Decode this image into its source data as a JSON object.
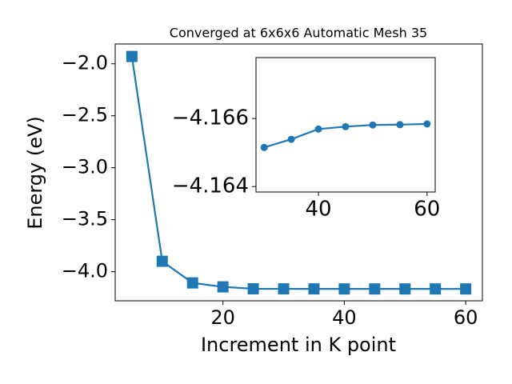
{
  "chart_data": [
    {
      "type": "line",
      "title": "Converged at 6x6x6 Automatic Mesh 35",
      "x_label": "Increment in K point",
      "y_label": "Energy (eV)",
      "x": [
        5,
        10,
        15,
        20,
        25,
        30,
        35,
        40,
        45,
        50,
        55,
        60
      ],
      "series": [
        {
          "color": "#1f77b4",
          "marker": "square",
          "values": [
            -1.93,
            -3.9,
            -4.108,
            -4.146,
            -4.1645,
            -4.16515,
            -4.16539,
            -4.16569,
            -4.16576,
            -4.16581,
            -4.16582,
            -4.16584
          ]
        }
      ],
      "xlim": [
        2.25,
        62.75
      ],
      "ylim": [
        -4.28,
        -1.81
      ],
      "xticks": [
        20,
        40,
        60
      ],
      "yticks": [
        {
          "value": -4.0,
          "label": "−4.0"
        },
        {
          "value": -3.5,
          "label": "−3.5"
        },
        {
          "value": -3.0,
          "label": "−3.0"
        },
        {
          "value": -2.5,
          "label": "−2.5"
        },
        {
          "value": -2.0,
          "label": "−2.0"
        }
      ]
    },
    {
      "type": "line",
      "x": [
        30,
        35,
        40,
        45,
        50,
        55,
        60
      ],
      "series": [
        {
          "color": "#1f77b4",
          "marker": "circle",
          "values": [
            -4.16515,
            -4.16539,
            -4.16569,
            -4.16576,
            -4.16581,
            -4.16582,
            -4.16584
          ]
        }
      ],
      "xlim": [
        28.5,
        61.5
      ],
      "ylim": [
        -4.16384,
        -4.16779
      ],
      "xticks": [
        40,
        60
      ],
      "yticks": [
        {
          "value": -4.166,
          "label": "−4.166"
        },
        {
          "value": -4.164,
          "label": "−4.164"
        }
      ]
    }
  ]
}
